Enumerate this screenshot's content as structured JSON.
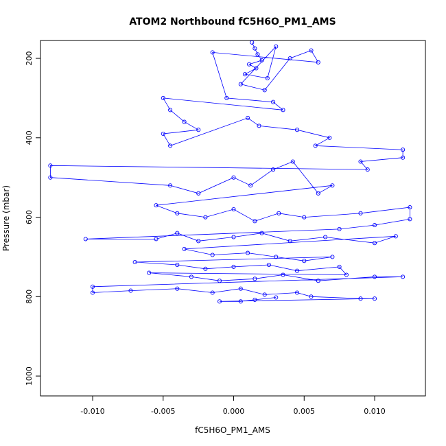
{
  "chart_data": {
    "type": "scatter",
    "title": "ATOM2 Northbound fC5H6O_PM1_AMS",
    "xlabel": "fC5H6O_PM1_AMS",
    "ylabel": "Pressure (mbar)",
    "xlim": [
      -0.0137,
      0.0136
    ],
    "ylim": [
      1050,
      155
    ],
    "y_reversed": true,
    "x_ticks": [
      "-0.010",
      "-0.005",
      "0.000",
      "0.005",
      "0.010"
    ],
    "x_tick_values": [
      -0.01,
      -0.005,
      0.0,
      0.005,
      0.01
    ],
    "y_ticks": [
      "200",
      "400",
      "600",
      "800",
      "1000"
    ],
    "y_tick_values": [
      200,
      400,
      600,
      800,
      1000
    ],
    "series_color": "#0000ff",
    "marker": "open-circle",
    "connected": true,
    "grid": false,
    "points": [
      {
        "x": 0.0013,
        "y": 160
      },
      {
        "x": 0.0015,
        "y": 175
      },
      {
        "x": 0.0017,
        "y": 190
      },
      {
        "x": 0.002,
        "y": 205
      },
      {
        "x": 0.0011,
        "y": 215
      },
      {
        "x": 0.0016,
        "y": 225
      },
      {
        "x": 0.0008,
        "y": 240
      },
      {
        "x": 0.0024,
        "y": 250
      },
      {
        "x": 0.003,
        "y": 170
      },
      {
        "x": 0.0005,
        "y": 265
      },
      {
        "x": 0.0022,
        "y": 280
      },
      {
        "x": 0.004,
        "y": 200
      },
      {
        "x": 0.0055,
        "y": 180
      },
      {
        "x": 0.006,
        "y": 210
      },
      {
        "x": -0.0015,
        "y": 185
      },
      {
        "x": -0.0005,
        "y": 300
      },
      {
        "x": 0.0028,
        "y": 310
      },
      {
        "x": 0.0035,
        "y": 330
      },
      {
        "x": -0.005,
        "y": 300
      },
      {
        "x": -0.0045,
        "y": 330
      },
      {
        "x": -0.0035,
        "y": 360
      },
      {
        "x": -0.0025,
        "y": 380
      },
      {
        "x": -0.005,
        "y": 390
      },
      {
        "x": -0.0045,
        "y": 420
      },
      {
        "x": 0.001,
        "y": 350
      },
      {
        "x": 0.0018,
        "y": 370
      },
      {
        "x": 0.0045,
        "y": 380
      },
      {
        "x": 0.0068,
        "y": 400
      },
      {
        "x": 0.0058,
        "y": 420
      },
      {
        "x": 0.012,
        "y": 430
      },
      {
        "x": 0.012,
        "y": 450
      },
      {
        "x": 0.009,
        "y": 460
      },
      {
        "x": 0.0095,
        "y": 480
      },
      {
        "x": -0.013,
        "y": 470
      },
      {
        "x": -0.013,
        "y": 500
      },
      {
        "x": -0.0045,
        "y": 520
      },
      {
        "x": -0.0025,
        "y": 540
      },
      {
        "x": 0.0,
        "y": 500
      },
      {
        "x": 0.0012,
        "y": 520
      },
      {
        "x": 0.0028,
        "y": 480
      },
      {
        "x": 0.0042,
        "y": 460
      },
      {
        "x": 0.006,
        "y": 540
      },
      {
        "x": 0.007,
        "y": 520
      },
      {
        "x": -0.0055,
        "y": 570
      },
      {
        "x": -0.004,
        "y": 590
      },
      {
        "x": -0.002,
        "y": 600
      },
      {
        "x": 0.0,
        "y": 580
      },
      {
        "x": 0.0015,
        "y": 610
      },
      {
        "x": 0.0032,
        "y": 590
      },
      {
        "x": 0.005,
        "y": 600
      },
      {
        "x": 0.009,
        "y": 590
      },
      {
        "x": 0.0125,
        "y": 575
      },
      {
        "x": 0.0125,
        "y": 605
      },
      {
        "x": 0.01,
        "y": 620
      },
      {
        "x": 0.0075,
        "y": 630
      },
      {
        "x": -0.0105,
        "y": 655
      },
      {
        "x": -0.0055,
        "y": 655
      },
      {
        "x": -0.004,
        "y": 640
      },
      {
        "x": -0.0025,
        "y": 660
      },
      {
        "x": 0.0,
        "y": 650
      },
      {
        "x": 0.002,
        "y": 640
      },
      {
        "x": 0.004,
        "y": 660
      },
      {
        "x": 0.0065,
        "y": 650
      },
      {
        "x": 0.01,
        "y": 665
      },
      {
        "x": 0.0115,
        "y": 648
      },
      {
        "x": -0.0035,
        "y": 680
      },
      {
        "x": -0.0015,
        "y": 695
      },
      {
        "x": 0.001,
        "y": 690
      },
      {
        "x": 0.003,
        "y": 700
      },
      {
        "x": 0.005,
        "y": 710
      },
      {
        "x": 0.007,
        "y": 700
      },
      {
        "x": -0.007,
        "y": 713
      },
      {
        "x": -0.004,
        "y": 720
      },
      {
        "x": -0.002,
        "y": 730
      },
      {
        "x": 0.0,
        "y": 725
      },
      {
        "x": 0.0025,
        "y": 720
      },
      {
        "x": 0.0045,
        "y": 735
      },
      {
        "x": 0.0075,
        "y": 725
      },
      {
        "x": 0.008,
        "y": 745
      },
      {
        "x": -0.006,
        "y": 740
      },
      {
        "x": -0.003,
        "y": 750
      },
      {
        "x": -0.001,
        "y": 760
      },
      {
        "x": 0.0015,
        "y": 755
      },
      {
        "x": 0.0035,
        "y": 745
      },
      {
        "x": 0.006,
        "y": 760
      },
      {
        "x": 0.01,
        "y": 750
      },
      {
        "x": 0.012,
        "y": 750
      },
      {
        "x": -0.01,
        "y": 775
      },
      {
        "x": -0.01,
        "y": 790
      },
      {
        "x": -0.0073,
        "y": 785
      },
      {
        "x": -0.004,
        "y": 780
      },
      {
        "x": -0.0015,
        "y": 790
      },
      {
        "x": 0.0005,
        "y": 780
      },
      {
        "x": 0.0022,
        "y": 795
      },
      {
        "x": 0.0045,
        "y": 790
      },
      {
        "x": 0.0055,
        "y": 800
      },
      {
        "x": 0.009,
        "y": 805
      },
      {
        "x": 0.01,
        "y": 805
      },
      {
        "x": -0.001,
        "y": 812
      },
      {
        "x": 0.0005,
        "y": 812
      },
      {
        "x": 0.0015,
        "y": 808
      },
      {
        "x": 0.003,
        "y": 802
      }
    ]
  }
}
